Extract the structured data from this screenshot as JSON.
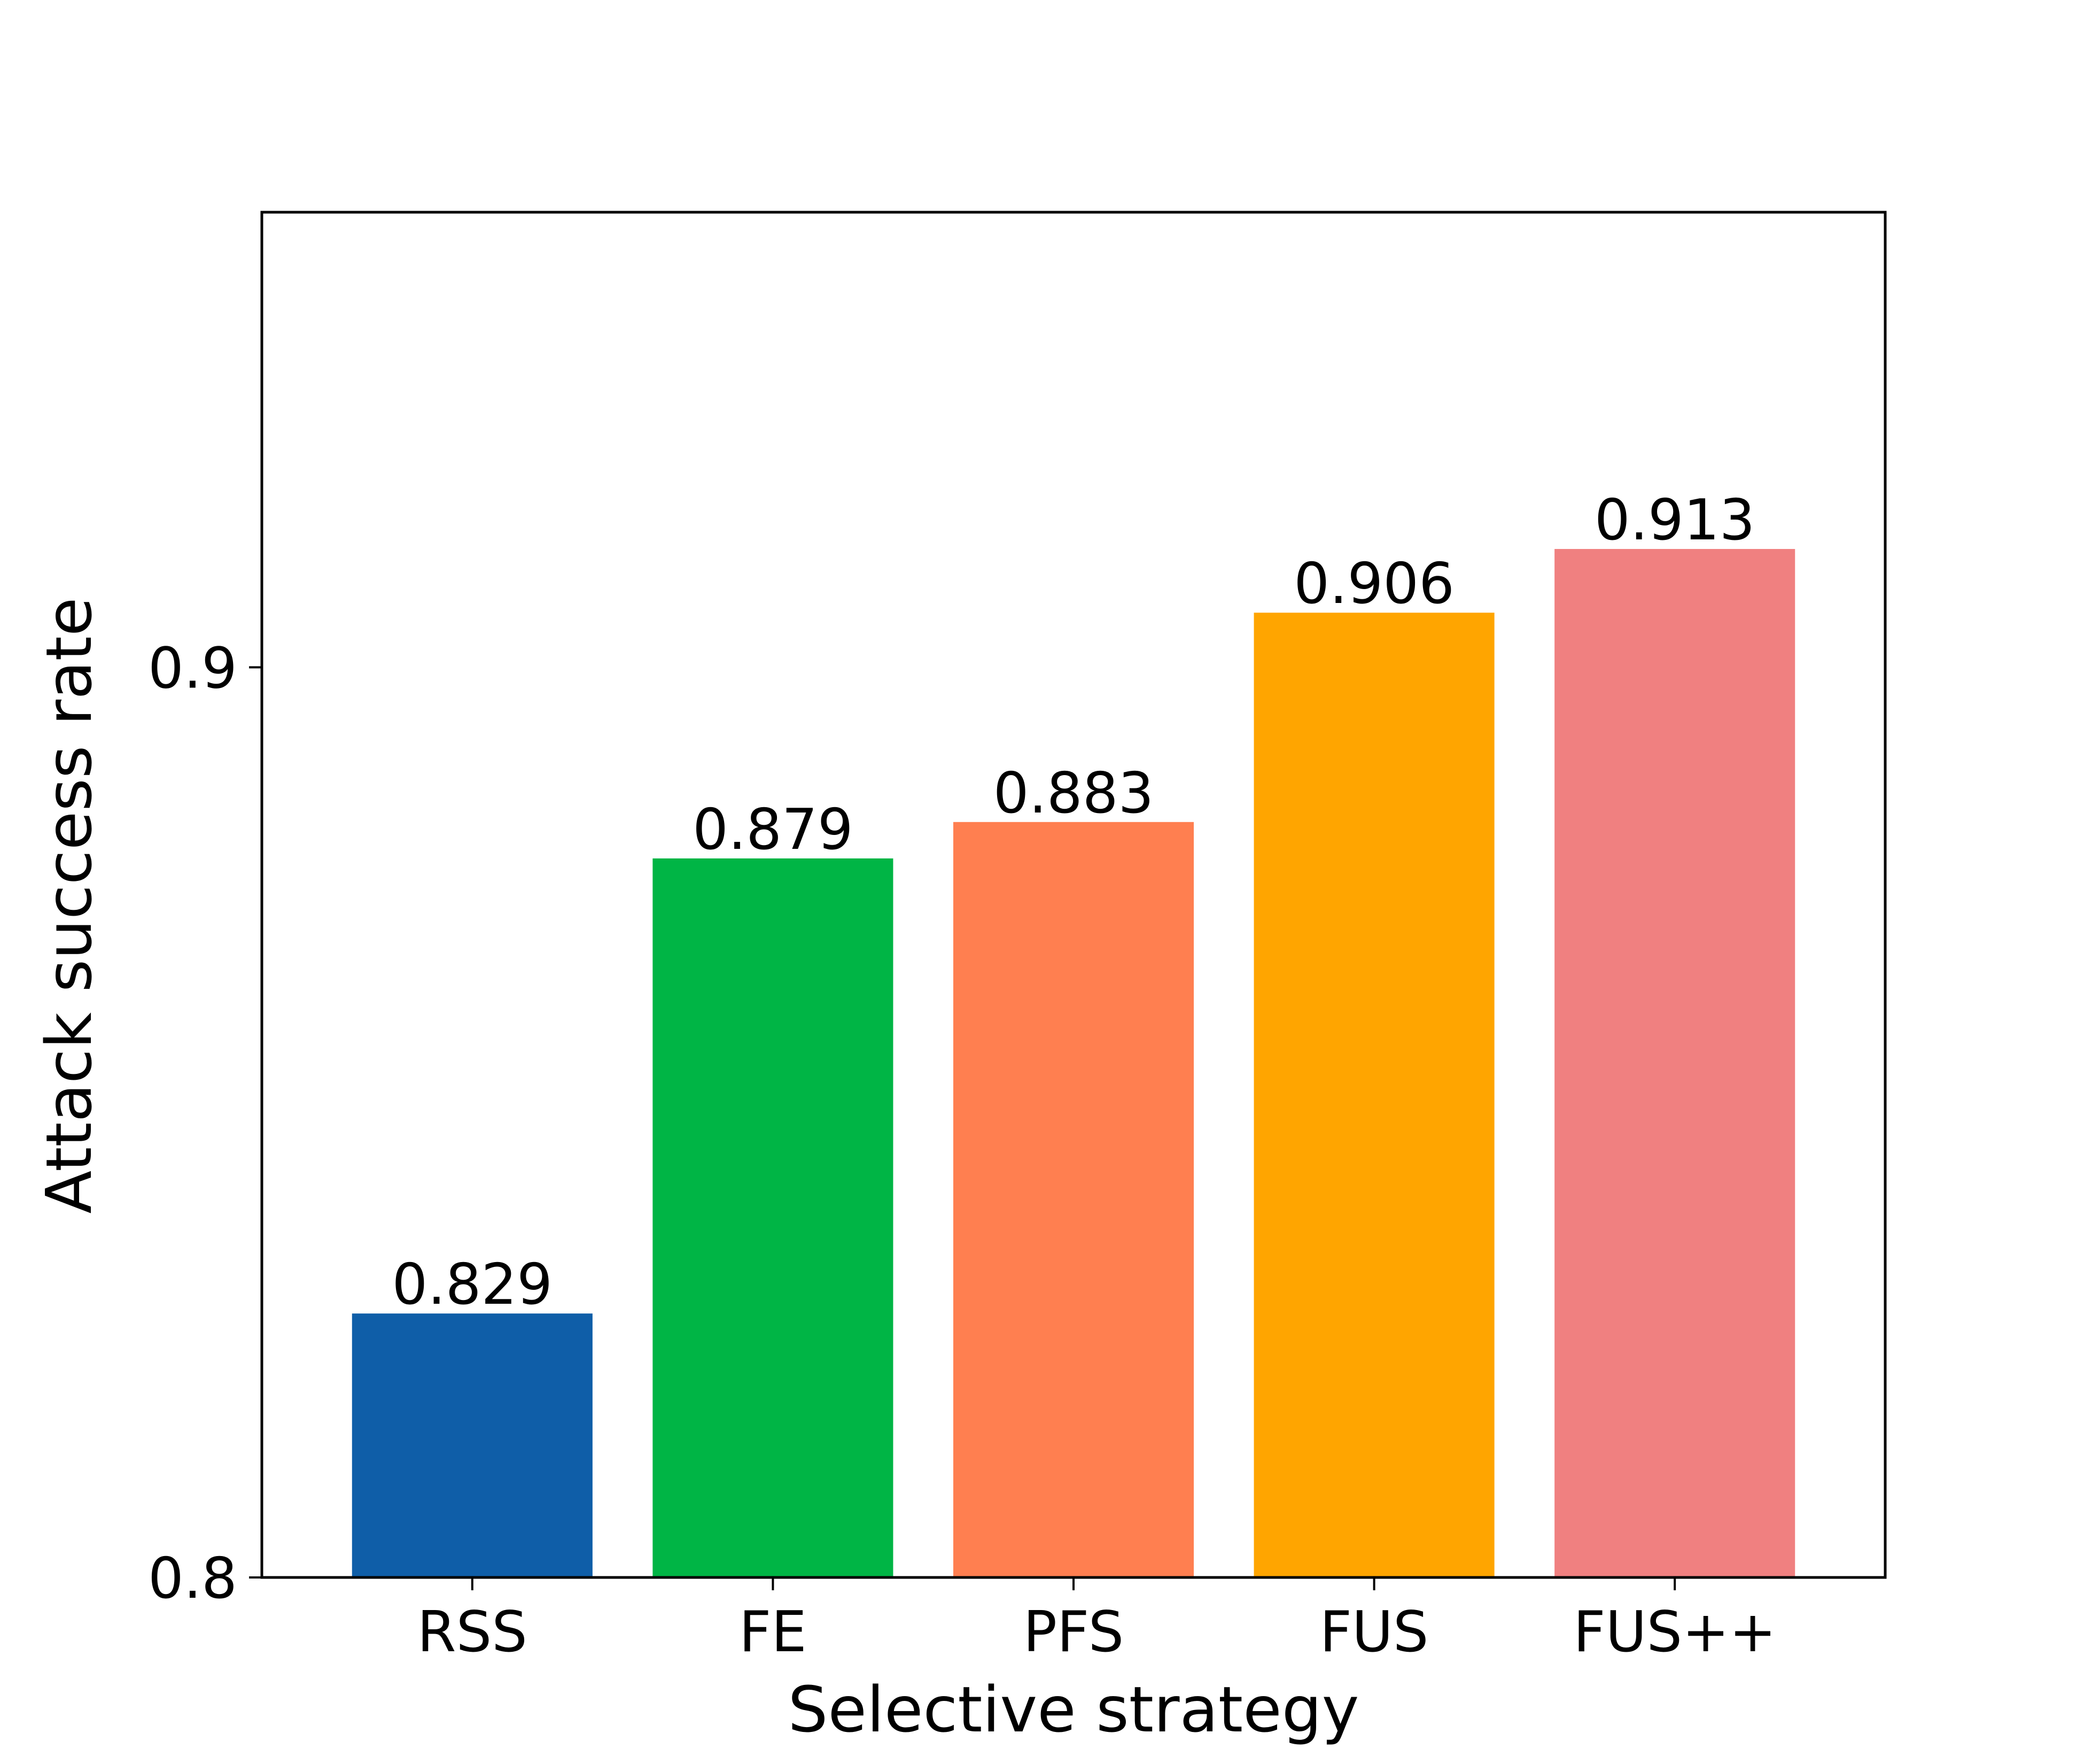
{
  "chart_data": {
    "type": "bar",
    "title": "",
    "xlabel": "Selective strategy",
    "ylabel": "Attack success rate",
    "categories": [
      "RSS",
      "FE",
      "PFS",
      "FUS",
      "FUS++"
    ],
    "values": [
      0.829,
      0.879,
      0.883,
      0.906,
      0.913
    ],
    "value_labels": [
      "0.829",
      "0.879",
      "0.883",
      "0.906",
      "0.913"
    ],
    "colors": [
      "#0f5ea8",
      "#00b545",
      "#ff7f50",
      "#ffa500",
      "#f08080"
    ],
    "ylim": [
      0.8,
      0.95
    ],
    "yticks": [
      0.8,
      0.9
    ],
    "ytick_labels": [
      "0.8",
      "0.9"
    ],
    "grid": false,
    "legend": "none"
  }
}
